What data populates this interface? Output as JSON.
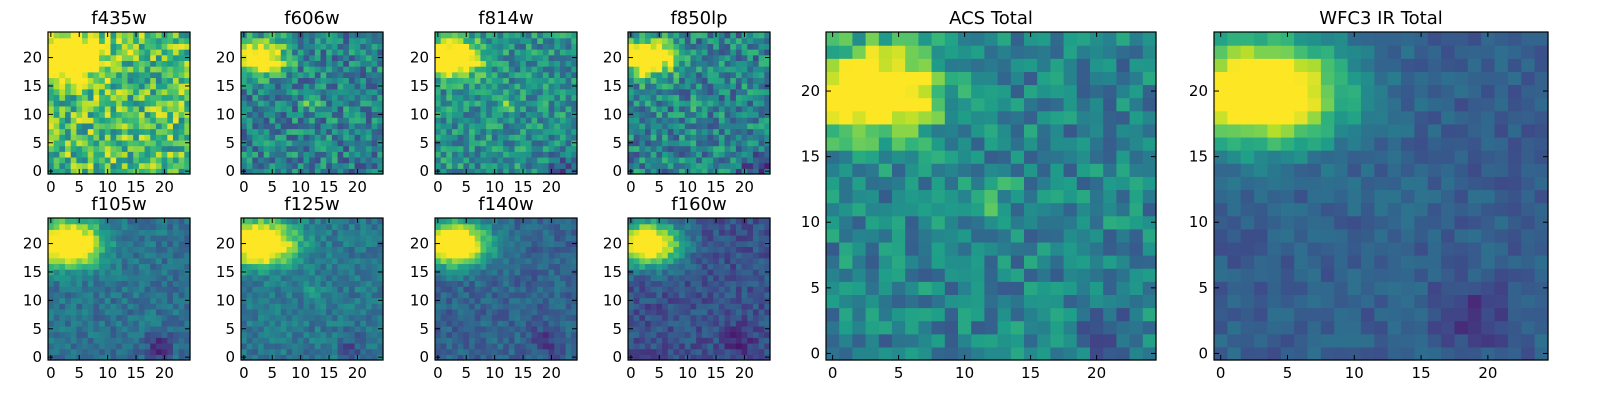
{
  "figure": {
    "description_colormap": "viridis",
    "colormap_stops": [
      "#440154",
      "#482878",
      "#3e4989",
      "#31688e",
      "#26828e",
      "#1f9e89",
      "#35b779",
      "#6ece58",
      "#b5de2b",
      "#fde725"
    ]
  },
  "chart_data": [
    {
      "type": "heatmap",
      "title": "f435w",
      "grid": [
        25,
        25
      ],
      "xticks": [
        0,
        5,
        10,
        15,
        20
      ],
      "yticks": [
        0,
        5,
        10,
        15,
        20
      ],
      "xlim": [
        -0.5,
        24.5
      ],
      "ylim": [
        -0.5,
        24.5
      ],
      "bright_source": {
        "x": 3,
        "y": 20,
        "peak": 0.78,
        "sigma": 3.0
      },
      "second_source": {
        "x": 12,
        "y": 12,
        "peak": 0.0,
        "sigma": 1.5
      },
      "background_level": 0.7,
      "noise_amplitude": 0.55,
      "extra_dark_region": {
        "x": 21,
        "y": 1,
        "strength": 0
      },
      "seed": 11
    },
    {
      "type": "heatmap",
      "title": "f606w",
      "grid": [
        25,
        25
      ],
      "xticks": [
        0,
        5,
        10,
        15,
        20
      ],
      "yticks": [
        0,
        5,
        10,
        15,
        20
      ],
      "xlim": [
        -0.5,
        24.5
      ],
      "ylim": [
        -0.5,
        24.5
      ],
      "bright_source": {
        "x": 3,
        "y": 20,
        "peak": 0.85,
        "sigma": 2.2
      },
      "second_source": {
        "x": 12,
        "y": 12,
        "peak": 0.25,
        "sigma": 1.2
      },
      "background_level": 0.45,
      "noise_amplitude": 0.45,
      "extra_dark_region": {
        "x": 21,
        "y": 1,
        "strength": 0.1
      },
      "seed": 23
    },
    {
      "type": "heatmap",
      "title": "f814w",
      "grid": [
        25,
        25
      ],
      "xticks": [
        0,
        5,
        10,
        15,
        20
      ],
      "yticks": [
        0,
        5,
        10,
        15,
        20
      ],
      "xlim": [
        -0.5,
        24.5
      ],
      "ylim": [
        -0.5,
        24.5
      ],
      "bright_source": {
        "x": 3,
        "y": 20,
        "peak": 0.95,
        "sigma": 2.4
      },
      "second_source": {
        "x": 12,
        "y": 12,
        "peak": 0.2,
        "sigma": 1.2
      },
      "background_level": 0.5,
      "noise_amplitude": 0.4,
      "extra_dark_region": {
        "x": 22,
        "y": 1,
        "strength": 0.3
      },
      "seed": 37
    },
    {
      "type": "heatmap",
      "title": "f850lp",
      "grid": [
        25,
        25
      ],
      "xticks": [
        0,
        5,
        10,
        15,
        20
      ],
      "yticks": [
        0,
        5,
        10,
        15,
        20
      ],
      "xlim": [
        -0.5,
        24.5
      ],
      "ylim": [
        -0.5,
        24.5
      ],
      "bright_source": {
        "x": 3,
        "y": 20,
        "peak": 0.95,
        "sigma": 2.4
      },
      "second_source": {
        "x": 12,
        "y": 12,
        "peak": 0.1,
        "sigma": 1.2
      },
      "background_level": 0.45,
      "noise_amplitude": 0.45,
      "extra_dark_region": {
        "x": 22,
        "y": 1,
        "strength": 0.3
      },
      "seed": 41
    },
    {
      "type": "heatmap",
      "title": "f105w",
      "grid": [
        25,
        25
      ],
      "xticks": [
        0,
        5,
        10,
        15,
        20
      ],
      "yticks": [
        0,
        5,
        10,
        15,
        20
      ],
      "xlim": [
        -0.5,
        24.5
      ],
      "ylim": [
        -0.5,
        24.5
      ],
      "bright_source": {
        "x": 3,
        "y": 20,
        "peak": 1.0,
        "sigma": 3.0
      },
      "second_source": {
        "x": 12,
        "y": 12,
        "peak": 0.0,
        "sigma": 1.5
      },
      "background_level": 0.38,
      "noise_amplitude": 0.22,
      "extra_dark_region": {
        "x": 19,
        "y": 2,
        "strength": 0.25
      },
      "seed": 53
    },
    {
      "type": "heatmap",
      "title": "f125w",
      "grid": [
        25,
        25
      ],
      "xticks": [
        0,
        5,
        10,
        15,
        20
      ],
      "yticks": [
        0,
        5,
        10,
        15,
        20
      ],
      "xlim": [
        -0.5,
        24.5
      ],
      "ylim": [
        -0.5,
        24.5
      ],
      "bright_source": {
        "x": 3,
        "y": 20,
        "peak": 1.0,
        "sigma": 3.0
      },
      "second_source": {
        "x": 12,
        "y": 12,
        "peak": 0.1,
        "sigma": 1.5
      },
      "background_level": 0.4,
      "noise_amplitude": 0.22,
      "extra_dark_region": {
        "x": 19,
        "y": 2,
        "strength": 0.15
      },
      "seed": 67
    },
    {
      "type": "heatmap",
      "title": "f140w",
      "grid": [
        25,
        25
      ],
      "xticks": [
        0,
        5,
        10,
        15,
        20
      ],
      "yticks": [
        0,
        5,
        10,
        15,
        20
      ],
      "xlim": [
        -0.5,
        24.5
      ],
      "ylim": [
        -0.5,
        24.5
      ],
      "bright_source": {
        "x": 3,
        "y": 20,
        "peak": 1.0,
        "sigma": 3.0
      },
      "second_source": {
        "x": 12,
        "y": 12,
        "peak": 0.0,
        "sigma": 1.5
      },
      "background_level": 0.32,
      "noise_amplitude": 0.2,
      "extra_dark_region": {
        "x": 19,
        "y": 3,
        "strength": 0.15
      },
      "seed": 79
    },
    {
      "type": "heatmap",
      "title": "f160w",
      "grid": [
        25,
        25
      ],
      "xticks": [
        0,
        5,
        10,
        15,
        20
      ],
      "yticks": [
        0,
        5,
        10,
        15,
        20
      ],
      "xlim": [
        -0.5,
        24.5
      ],
      "ylim": [
        -0.5,
        24.5
      ],
      "bright_source": {
        "x": 3,
        "y": 20,
        "peak": 1.0,
        "sigma": 3.0
      },
      "second_source": {
        "x": 12,
        "y": 12,
        "peak": 0.0,
        "sigma": 1.5
      },
      "background_level": 0.25,
      "noise_amplitude": 0.2,
      "extra_dark_region": {
        "x": 19,
        "y": 3,
        "strength": 0.15
      },
      "seed": 97
    },
    {
      "type": "heatmap",
      "title": "ACS Total",
      "grid": [
        25,
        25
      ],
      "xticks": [
        0,
        5,
        10,
        15,
        20
      ],
      "yticks": [
        0,
        5,
        10,
        15,
        20
      ],
      "xlim": [
        -0.5,
        24.5
      ],
      "ylim": [
        -0.5,
        24.5
      ],
      "bright_source": {
        "x": 3,
        "y": 20,
        "peak": 0.95,
        "sigma": 2.5
      },
      "second_source": {
        "x": 12,
        "y": 12,
        "peak": 0.2,
        "sigma": 1.2
      },
      "background_level": 0.45,
      "noise_amplitude": 0.35,
      "extra_dark_region": {
        "x": 21,
        "y": 1,
        "strength": 0.1
      },
      "seed": 131
    },
    {
      "type": "heatmap",
      "title": "WFC3 IR Total",
      "grid": [
        25,
        25
      ],
      "xticks": [
        0,
        5,
        10,
        15,
        20
      ],
      "yticks": [
        0,
        5,
        10,
        15,
        20
      ],
      "xlim": [
        -0.5,
        24.5
      ],
      "ylim": [
        -0.5,
        24.5
      ],
      "bright_source": {
        "x": 3,
        "y": 20,
        "peak": 1.0,
        "sigma": 3.2
      },
      "second_source": {
        "x": 12,
        "y": 12,
        "peak": 0.05,
        "sigma": 1.5
      },
      "background_level": 0.3,
      "noise_amplitude": 0.14,
      "extra_dark_region": {
        "x": 19,
        "y": 3,
        "strength": 0.15
      },
      "seed": 151
    }
  ]
}
